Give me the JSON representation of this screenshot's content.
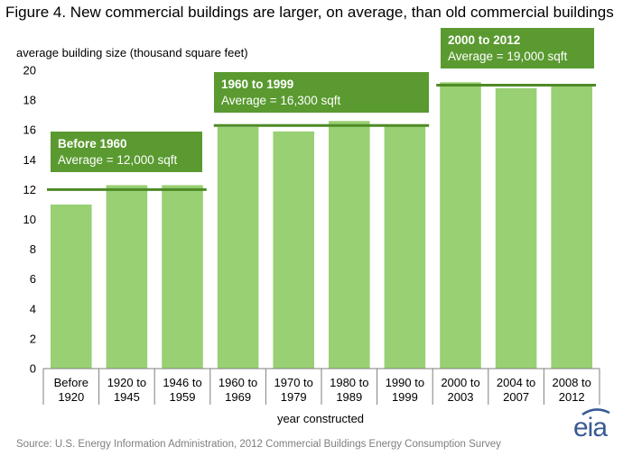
{
  "title": "Figure 4. New commercial buildings are larger, on average, than old commercial buildings",
  "source": "Source: U.S. Energy Information Administration,  2012 Commercial Buildings Energy Consumption Survey",
  "logo_text": "eia",
  "colors": {
    "bar": "#98d073",
    "note_box": "#5a9a30",
    "average_line": "#4e8a27",
    "logo": "#3a5a94"
  },
  "chart_data": {
    "type": "bar",
    "ylabel": "average building size (thousand square feet)",
    "xlabel": "year constructed",
    "ylim": [
      0,
      20
    ],
    "yticks": [
      0,
      2,
      4,
      6,
      8,
      10,
      12,
      14,
      16,
      18,
      20
    ],
    "categories": [
      [
        "Before",
        "1920"
      ],
      [
        "1920 to",
        "1945"
      ],
      [
        "1946 to",
        "1959"
      ],
      [
        "1960 to",
        "1969"
      ],
      [
        "1970 to",
        "1979"
      ],
      [
        "1980 to",
        "1989"
      ],
      [
        "1990 to",
        "1999"
      ],
      [
        "2000 to",
        "2003"
      ],
      [
        "2004 to",
        "2007"
      ],
      [
        "2008 to",
        "2012"
      ]
    ],
    "values": [
      11.0,
      12.3,
      12.3,
      16.2,
      15.9,
      16.6,
      16.3,
      19.2,
      18.8,
      19.0
    ],
    "averages": [
      {
        "title": "Before 1960",
        "label": "Average = 12,000 sqft",
        "value": 12.0,
        "from": 0,
        "to": 2
      },
      {
        "title": "1960 to 1999",
        "label": "Average = 16,300 sqft",
        "value": 16.3,
        "from": 3,
        "to": 6
      },
      {
        "title": "2000 to 2012",
        "label": "Average = 19,000 sqft",
        "value": 19.0,
        "from": 7,
        "to": 9
      }
    ],
    "grid": false
  }
}
